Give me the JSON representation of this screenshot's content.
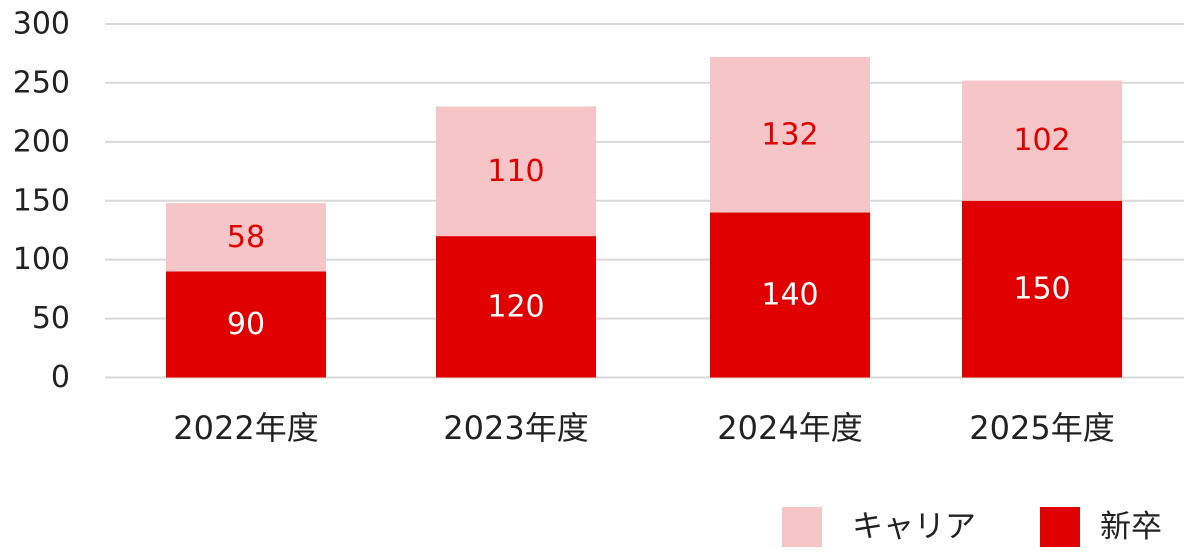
{
  "chart_data": {
    "type": "bar",
    "stacked": true,
    "categories": [
      "2022年度",
      "2023年度",
      "2024年度",
      "2025年度"
    ],
    "series": [
      {
        "name": "新卒",
        "values": [
          90,
          120,
          140,
          150
        ],
        "color": "#e00000",
        "label_color": "#ffffff"
      },
      {
        "name": "キャリア",
        "values": [
          58,
          110,
          132,
          102
        ],
        "color": "#f5c5c7",
        "label_color": "#e00000"
      }
    ],
    "yticks": [
      0,
      50,
      100,
      150,
      200,
      250,
      300
    ],
    "ylim": [
      0,
      300
    ],
    "grid": true,
    "grid_color": "#d9d9d9",
    "legend": {
      "position": "bottom-right",
      "order": [
        "キャリア",
        "新卒"
      ]
    }
  }
}
